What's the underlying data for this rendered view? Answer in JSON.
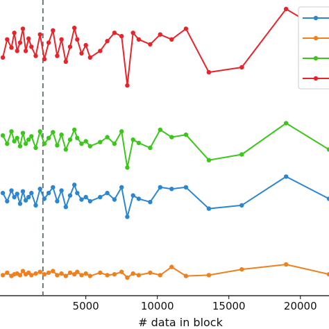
{
  "chart_data": {
    "type": "line",
    "title": "",
    "xlabel": "# data in block",
    "ylabel": "",
    "xlim": [
      -1000,
      22000
    ],
    "ylim": [
      -0.3,
      3.3
    ],
    "xticks": [
      5000,
      10000,
      15000,
      20000
    ],
    "x_tick_labels": [
      "5000",
      "10000",
      "15000",
      "20000"
    ],
    "grid": false,
    "legend": "top-right (entries cut off at image edge)",
    "vline": {
      "x": 2000,
      "style": "dashed",
      "color": "#5f6b6b"
    },
    "series": [
      {
        "color": "#e8232a",
        "x": [
          -800,
          -500,
          -200,
          0,
          200,
          400,
          600,
          800,
          1000,
          1200,
          1500,
          1800,
          2100,
          2400,
          2700,
          3000,
          3300,
          3600,
          3900,
          4200,
          4400,
          4700,
          5000,
          5300,
          6000,
          6500,
          7000,
          7500,
          7900,
          8300,
          8700,
          9500,
          10200,
          11000,
          12000,
          13600,
          15900,
          19000,
          22000
        ],
        "y": [
          2.6,
          2.82,
          2.72,
          2.9,
          2.68,
          2.78,
          2.95,
          2.68,
          2.83,
          2.73,
          2.62,
          2.88,
          2.58,
          2.78,
          2.93,
          2.62,
          2.82,
          2.55,
          2.73,
          2.96,
          2.82,
          2.65,
          2.75,
          2.6,
          2.68,
          2.8,
          2.9,
          2.86,
          2.26,
          2.9,
          2.82,
          2.76,
          2.88,
          2.82,
          2.95,
          2.42,
          2.48,
          3.19,
          2.88
        ]
      },
      {
        "color": "#3ac71a",
        "x": [
          -800,
          -500,
          -200,
          0,
          200,
          400,
          600,
          800,
          1000,
          1200,
          1500,
          1800,
          2100,
          2400,
          2700,
          3000,
          3300,
          3600,
          3900,
          4200,
          4400,
          4700,
          5000,
          5300,
          6000,
          6500,
          7000,
          7500,
          7900,
          8300,
          8700,
          9500,
          10200,
          11000,
          12000,
          13600,
          15900,
          19000,
          22000
        ],
        "y": [
          1.65,
          1.55,
          1.7,
          1.58,
          1.62,
          1.52,
          1.68,
          1.55,
          1.6,
          1.64,
          1.5,
          1.7,
          1.55,
          1.62,
          1.69,
          1.53,
          1.66,
          1.48,
          1.6,
          1.72,
          1.62,
          1.55,
          1.58,
          1.52,
          1.57,
          1.63,
          1.55,
          1.7,
          1.26,
          1.6,
          1.56,
          1.5,
          1.72,
          1.63,
          1.66,
          1.35,
          1.42,
          1.8,
          1.48
        ]
      },
      {
        "color": "#2a86d3",
        "x": [
          -800,
          -500,
          -200,
          0,
          200,
          400,
          600,
          800,
          1000,
          1200,
          1500,
          1800,
          2100,
          2400,
          2700,
          3000,
          3300,
          3600,
          3900,
          4200,
          4400,
          4700,
          5000,
          5300,
          6000,
          6500,
          7000,
          7500,
          7900,
          8300,
          8700,
          9500,
          10200,
          11000,
          12000,
          13600,
          15900,
          19000,
          22000
        ],
        "y": [
          0.95,
          0.85,
          0.98,
          0.9,
          0.94,
          0.82,
          0.97,
          0.86,
          0.9,
          0.95,
          0.8,
          1.0,
          0.88,
          0.95,
          1.02,
          0.85,
          0.98,
          0.78,
          0.92,
          1.05,
          0.95,
          0.87,
          0.9,
          0.85,
          0.9,
          0.95,
          0.87,
          1.02,
          0.66,
          0.92,
          0.88,
          0.84,
          1.02,
          1.0,
          1.02,
          0.76,
          0.8,
          1.15,
          0.88
        ]
      },
      {
        "color": "#f07f1e",
        "x": [
          -800,
          -500,
          -200,
          0,
          200,
          400,
          600,
          800,
          1000,
          1200,
          1500,
          1800,
          2100,
          2400,
          2700,
          3000,
          3300,
          3600,
          3900,
          4200,
          4400,
          4700,
          5000,
          5300,
          6000,
          6500,
          7000,
          7500,
          7900,
          8300,
          8700,
          9500,
          10200,
          11000,
          12000,
          13600,
          15900,
          19000,
          22000
        ],
        "y": [
          -0.05,
          -0.02,
          -0.06,
          -0.04,
          -0.03,
          -0.05,
          0.0,
          -0.04,
          -0.02,
          -0.05,
          -0.03,
          -0.01,
          -0.04,
          -0.02,
          0.0,
          -0.05,
          -0.03,
          -0.06,
          -0.02,
          -0.04,
          -0.01,
          -0.05,
          -0.03,
          -0.06,
          -0.02,
          -0.05,
          -0.04,
          -0.01,
          -0.08,
          -0.03,
          -0.05,
          -0.02,
          -0.05,
          0.05,
          -0.06,
          -0.05,
          0.02,
          0.08,
          -0.04
        ]
      }
    ]
  }
}
